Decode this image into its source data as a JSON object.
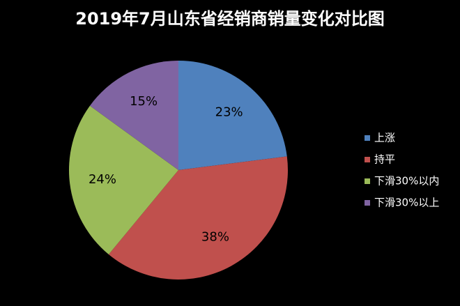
{
  "chart_data": {
    "type": "pie",
    "title": "2019年7月山东省经销商销量变化对比图",
    "categories": [
      "上涨",
      "持平",
      "下滑30%以内",
      "下滑30%以上"
    ],
    "values": [
      23,
      38,
      24,
      15
    ],
    "value_labels": [
      "23%",
      "38%",
      "24%",
      "15%"
    ],
    "colors": [
      "#4f81bd",
      "#c0504d",
      "#9bbb59",
      "#8064a2"
    ],
    "legend": "right"
  }
}
